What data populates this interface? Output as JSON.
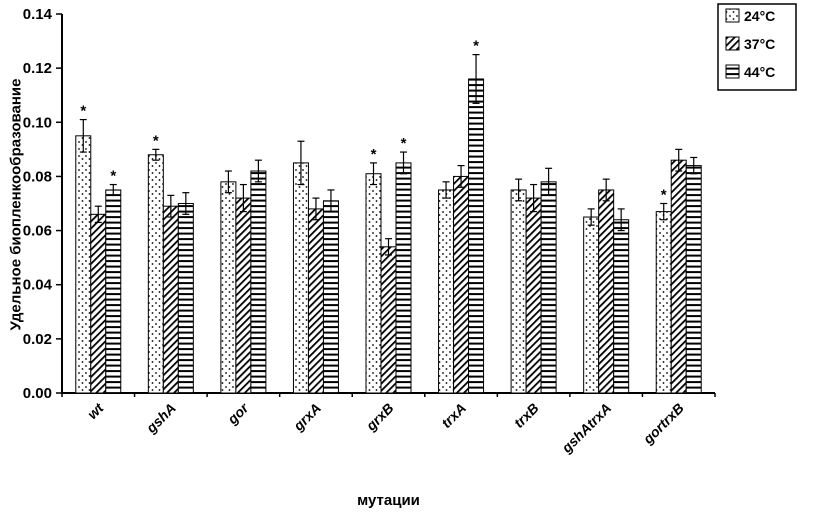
{
  "chart_data": {
    "type": "bar",
    "title": "",
    "xlabel": "мутации",
    "ylabel": "Удельное биопленкообразование",
    "ylim": [
      0,
      0.14
    ],
    "ytick_step": 0.02,
    "grid": false,
    "legend_position": "top-right",
    "significance_marker": "*",
    "categories": [
      "wt",
      "gshA",
      "gor",
      "grxA",
      "grxB",
      "trxA",
      "trxB",
      "gshAtrxA",
      "gortrxB"
    ],
    "series": [
      {
        "name": "24°C",
        "pattern": "dots",
        "values": [
          0.095,
          0.088,
          0.078,
          0.085,
          0.081,
          0.075,
          0.075,
          0.065,
          0.067
        ],
        "errors": [
          0.006,
          0.002,
          0.004,
          0.008,
          0.004,
          0.003,
          0.004,
          0.003,
          0.003
        ],
        "significant": [
          true,
          true,
          false,
          false,
          true,
          false,
          false,
          false,
          true
        ]
      },
      {
        "name": "37°C",
        "pattern": "diagonal",
        "values": [
          0.066,
          0.069,
          0.072,
          0.068,
          0.054,
          0.08,
          0.072,
          0.075,
          0.086
        ],
        "errors": [
          0.003,
          0.004,
          0.005,
          0.004,
          0.003,
          0.004,
          0.005,
          0.004,
          0.004
        ],
        "significant": [
          false,
          false,
          false,
          false,
          false,
          false,
          false,
          false,
          false
        ]
      },
      {
        "name": "44°C",
        "pattern": "horizontal",
        "values": [
          0.075,
          0.07,
          0.082,
          0.071,
          0.085,
          0.116,
          0.078,
          0.064,
          0.084
        ],
        "errors": [
          0.002,
          0.004,
          0.004,
          0.004,
          0.004,
          0.009,
          0.005,
          0.004,
          0.003
        ],
        "significant": [
          true,
          false,
          false,
          false,
          true,
          true,
          false,
          false,
          false
        ]
      }
    ]
  }
}
